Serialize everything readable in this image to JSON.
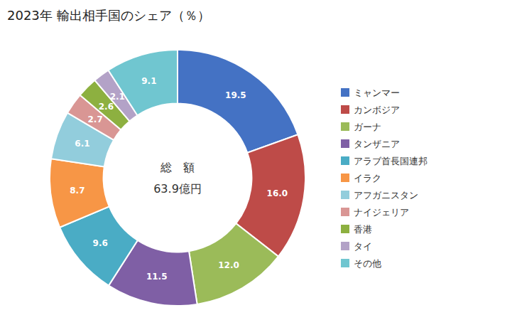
{
  "chart_data": {
    "type": "donut",
    "title": "2023年 輸出相手国のシェア（％）",
    "annotations": [
      "総　額",
      "63.9億円"
    ],
    "categories": [
      "ミャンマー",
      "カンボジア",
      "ガーナ",
      "タンザニア",
      "アラブ首長国連邦",
      "イラク",
      "アフガニスタン",
      "ナイジェリア",
      "香港",
      "タイ",
      "その他"
    ],
    "values": [
      19.5,
      16.0,
      12.0,
      11.5,
      9.6,
      8.7,
      6.1,
      2.7,
      2.6,
      2.1,
      9.1
    ],
    "value_labels": [
      "19.5",
      "16.0",
      "12.0",
      "11.5",
      "9.6",
      "8.7",
      "6.1",
      "2.7",
      "2.6",
      "2.1",
      "9.1"
    ],
    "colors": [
      "#4472C4",
      "#BE4B48",
      "#9BBB59",
      "#7F5FA5",
      "#4AACC5",
      "#F79646",
      "#92CDDC",
      "#D99694",
      "#8DB040",
      "#B3A2C7",
      "#70C6D0"
    ],
    "data_labels": true,
    "legend": "right"
  }
}
